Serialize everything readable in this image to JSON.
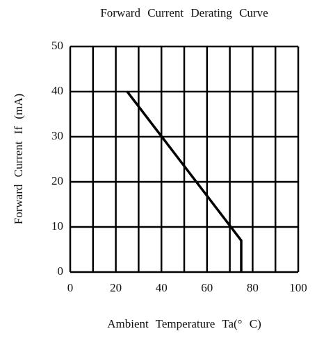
{
  "chart_data": {
    "type": "line",
    "title": "Forward Current Derating Curve",
    "xlabel": "Ambient Temperature Ta(° C)",
    "ylabel": "Forward Current If (mA)",
    "x": [
      25,
      75,
      75
    ],
    "series": [
      {
        "name": "If",
        "color": "#000000",
        "values": [
          40,
          7,
          0
        ]
      }
    ],
    "xlim": [
      0,
      100
    ],
    "xticks": [
      0,
      20,
      40,
      60,
      80,
      100
    ],
    "x_grid": [
      0,
      10,
      20,
      30,
      40,
      50,
      60,
      70,
      80,
      90,
      100
    ],
    "ylim": [
      0,
      50
    ],
    "yticks": [
      0,
      10,
      20,
      30,
      40,
      50
    ],
    "grid": true
  }
}
